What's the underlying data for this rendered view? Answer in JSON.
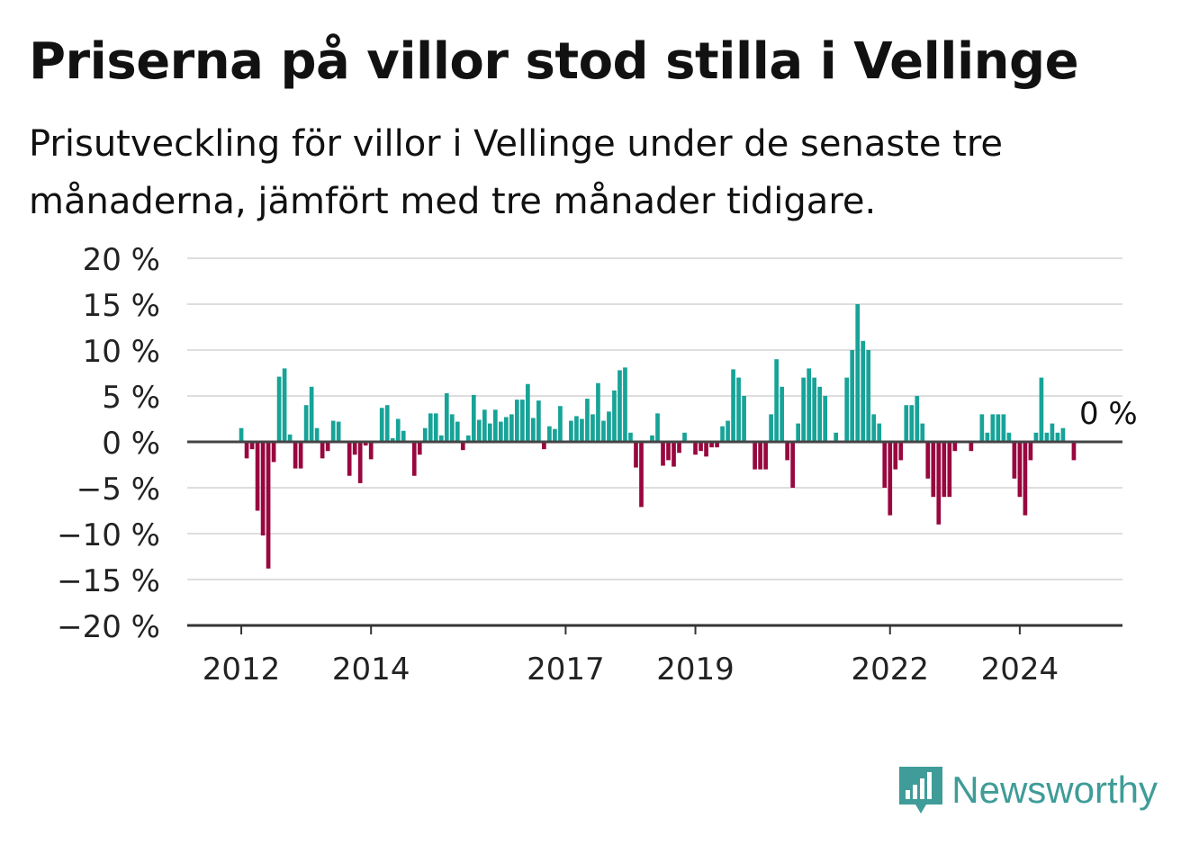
{
  "title": "Priserna på villor stod stilla i Vellinge",
  "subtitle": "Prisutveckling för villor i Vellinge under de senaste tre månaderna, jämfört med tre månader tidigare.",
  "brand": {
    "name": "Newsworthy"
  },
  "colors": {
    "positive": "#17a398",
    "negative": "#98073f",
    "grid": "#dedede",
    "axis": "#333333"
  },
  "chart_data": {
    "type": "bar",
    "title": "Priserna på villor stod stilla i Vellinge",
    "ylim": [
      -20,
      20
    ],
    "yticks": [
      20,
      15,
      10,
      5,
      0,
      -5,
      -10,
      -15,
      -20
    ],
    "ytick_labels": [
      "20 %",
      "15 %",
      "10 %",
      "5 %",
      "0 %",
      "−5 %",
      "−10 %",
      "−15 %",
      "−20 %"
    ],
    "xlim": [
      "2011-03",
      "2025-08"
    ],
    "xticks": [
      "2012-01",
      "2014-01",
      "2017-01",
      "2019-01",
      "2022-01",
      "2024-01"
    ],
    "xtick_labels": [
      "2012",
      "2014",
      "2017",
      "2019",
      "2022",
      "2024"
    ],
    "start_month": "2012-01",
    "values": [
      1.5,
      -1.8,
      -0.8,
      -7.5,
      -10.2,
      -13.8,
      -2.2,
      7.1,
      8.0,
      0.8,
      -2.9,
      -2.9,
      4.0,
      6.0,
      1.5,
      -1.8,
      -1.0,
      2.3,
      2.2,
      0.0,
      -3.7,
      -1.4,
      -4.5,
      -0.4,
      -1.9,
      0.0,
      3.7,
      4.0,
      0.4,
      2.5,
      1.2,
      0.0,
      -3.7,
      -1.4,
      1.5,
      3.1,
      3.1,
      0.7,
      5.3,
      3.0,
      2.2,
      -0.9,
      0.7,
      5.1,
      2.4,
      3.5,
      2.0,
      3.5,
      2.2,
      2.7,
      3.0,
      4.6,
      4.6,
      6.3,
      2.6,
      4.5,
      -0.8,
      1.7,
      1.4,
      3.9,
      0.0,
      2.3,
      2.8,
      2.5,
      4.7,
      3.0,
      6.4,
      2.3,
      3.3,
      5.6,
      7.8,
      8.1,
      1.0,
      -2.8,
      -7.1,
      0.0,
      0.7,
      3.1,
      -2.6,
      -2.0,
      -2.7,
      -1.2,
      1.0,
      0.0,
      -1.4,
      -1.0,
      -1.6,
      -0.6,
      -0.6,
      1.7,
      2.3,
      7.9,
      7.0,
      5.0,
      0.0,
      -3.0,
      -3.0,
      -3.0,
      3.0,
      9.0,
      6.0,
      -2.0,
      -5.0,
      2.0,
      7.0,
      8.0,
      7.0,
      6.0,
      5.0,
      0.0,
      1.0,
      0.0,
      7.0,
      10.0,
      15.0,
      11.0,
      10.0,
      3.0,
      2.0,
      -5.0,
      -8.0,
      -3.0,
      -2.0,
      4.0,
      4.0,
      5.0,
      2.0,
      -4.0,
      -6.0,
      -9.0,
      -6.0,
      -6.0,
      -1.0,
      0.0,
      0.0,
      -1.0,
      0.0,
      3.0,
      1.0,
      3.0,
      3.0,
      3.0,
      1.0,
      -4.0,
      -6.0,
      -8.0,
      -2.0,
      1.0,
      7.0,
      1.0,
      2.0,
      1.0,
      1.5,
      0.0,
      -2.0
    ],
    "annotation": {
      "label": "0 %",
      "month": "2024-12"
    }
  }
}
